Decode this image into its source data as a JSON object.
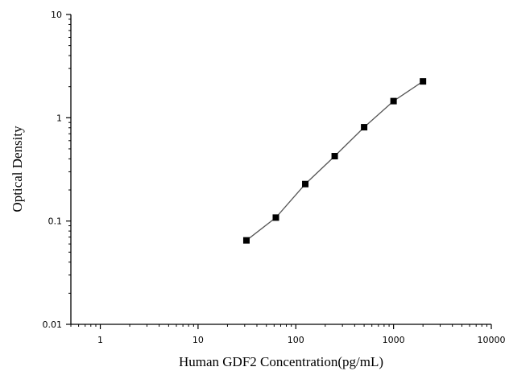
{
  "chart_data": {
    "type": "scatter",
    "title": "",
    "xlabel": "Human GDF2 Concentration(pg/mL)",
    "ylabel": "Optical Density",
    "x_scale": "log",
    "y_scale": "log",
    "xlim": [
      0.5,
      10000
    ],
    "ylim": [
      0.01,
      10
    ],
    "x_ticks": [
      1,
      10,
      100,
      1000,
      10000
    ],
    "x_tick_labels": [
      "1",
      "10",
      "100",
      "1000",
      "10000"
    ],
    "y_ticks": [
      0.01,
      0.1,
      1,
      10
    ],
    "y_tick_labels": [
      "0.01",
      "0.1",
      "1",
      "10"
    ],
    "grid": false,
    "legend": "none",
    "series": [
      {
        "x": [
          31.25,
          62.5,
          125,
          250,
          500,
          1000,
          2000
        ],
        "y": [
          0.065,
          0.108,
          0.228,
          0.425,
          0.81,
          1.45,
          2.25
        ],
        "marker": "square",
        "line": "connected",
        "marker_color": "#000000",
        "line_color": "#555555"
      }
    ]
  }
}
